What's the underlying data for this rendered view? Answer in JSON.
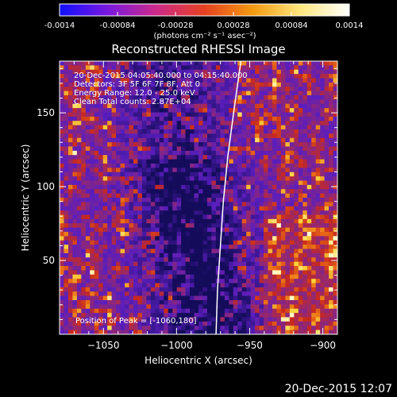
{
  "colorbar": {
    "tick_labels": [
      "-0.0014",
      "-0.00084",
      "-0.00028",
      "0.00028",
      "0.00084",
      "0.0014"
    ],
    "units_label": "(photons cm⁻² s⁻¹ asec⁻²)",
    "range": [
      -0.0014,
      0.0014
    ],
    "colormap_stops": [
      "#1010ff",
      "#7a18e0",
      "#cc2a8a",
      "#e64020",
      "#f49a10",
      "#ffe880",
      "#ffffff"
    ]
  },
  "chart_data": {
    "type": "heatmap",
    "title": "Reconstructed RHESSI Image",
    "xlabel": "Heliocentric X (arcsec)",
    "ylabel": "Heliocentric Y (arcsec)",
    "xlim": [
      -1080,
      -890
    ],
    "ylim": [
      0,
      185
    ],
    "x_ticks": [
      -1050,
      -1000,
      -950,
      -900
    ],
    "x_tick_labels": [
      "−1050",
      "−1000",
      "−950",
      "−900"
    ],
    "y_ticks": [
      50,
      100,
      150
    ],
    "y_tick_labels": [
      "50",
      "100",
      "150"
    ],
    "limb_curve": [
      [
        -956,
        185
      ],
      [
        -961,
        150
      ],
      [
        -965,
        120
      ],
      [
        -968,
        90
      ],
      [
        -970,
        60
      ],
      [
        -972,
        30
      ],
      [
        -973,
        0
      ]
    ],
    "annotations": [
      "20-Dec-2015 04:05:40.000 to 04:15:40.000",
      "Detectors: 3F 5F 6F 7F 8F, Att 0",
      "Energy Range: 12.0 - 25.0 keV",
      "Clean      Total counts: 2.87E+04"
    ],
    "peak_label": "Position of Peak = [-1060,180]",
    "peak_position": [
      -1060,
      180
    ]
  },
  "footer": {
    "timestamp": "20-Dec-2015 12:07"
  }
}
